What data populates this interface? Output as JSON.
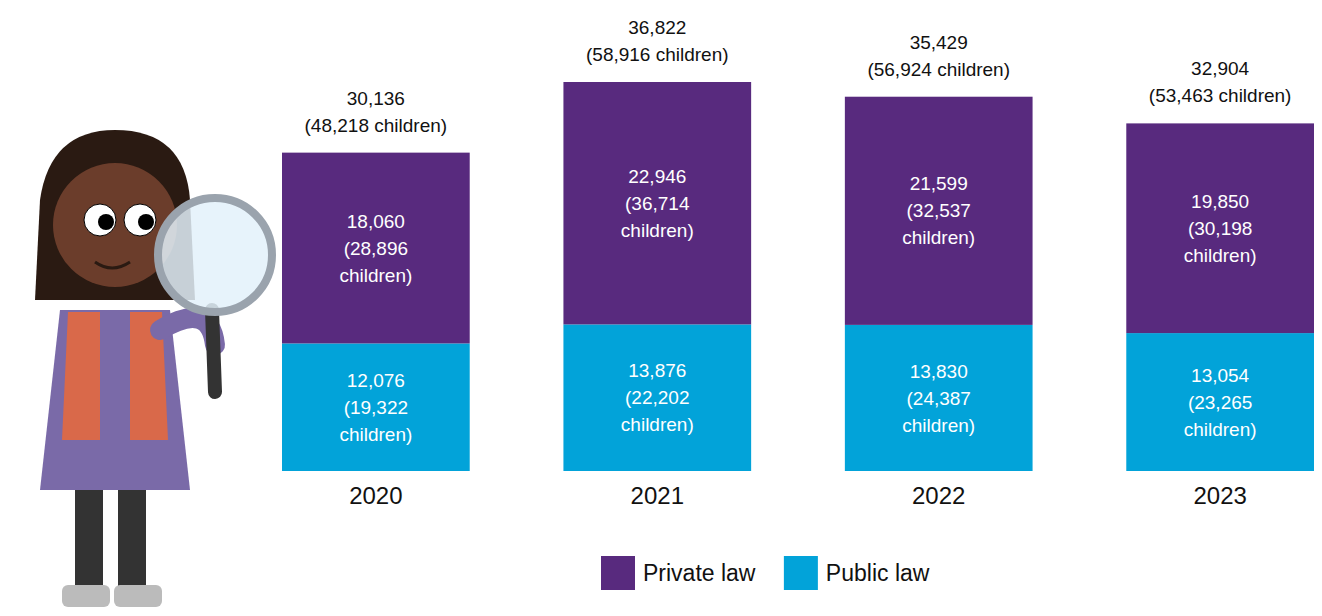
{
  "chart_data": {
    "type": "bar",
    "stacked": true,
    "data_labels": true,
    "tick_labels": "x",
    "legend": "bottom",
    "categories": [
      "2020",
      "2021",
      "2022",
      "2023"
    ],
    "series": [
      {
        "name": "Private law",
        "color": "#582a7e",
        "values": [
          18060,
          22946,
          21599,
          19850
        ],
        "value_labels": [
          "18,060",
          "22,946",
          "21,599",
          "19,850"
        ],
        "children_labels": [
          "(28,896 children)",
          "(36,714 children)",
          "(32,537 children)",
          "(30,198 children)"
        ]
      },
      {
        "name": "Public law",
        "color": "#02a3d9",
        "values": [
          12076,
          13876,
          13830,
          13054
        ],
        "value_labels": [
          "12,076",
          "13,876",
          "13,830",
          "13,054"
        ],
        "children_labels": [
          "(19,322 children)",
          "(22,202 children)",
          "(24,387 children)",
          "(23,265 children)"
        ]
      }
    ],
    "totals": [
      30136,
      36822,
      35429,
      32904
    ],
    "total_labels": [
      "30,136",
      "36,822",
      "35,429",
      "32,904"
    ],
    "total_children_labels": [
      "(48,218 children)",
      "(58,916 children)",
      "(56,924 children)",
      "(53,463 children)"
    ]
  }
}
